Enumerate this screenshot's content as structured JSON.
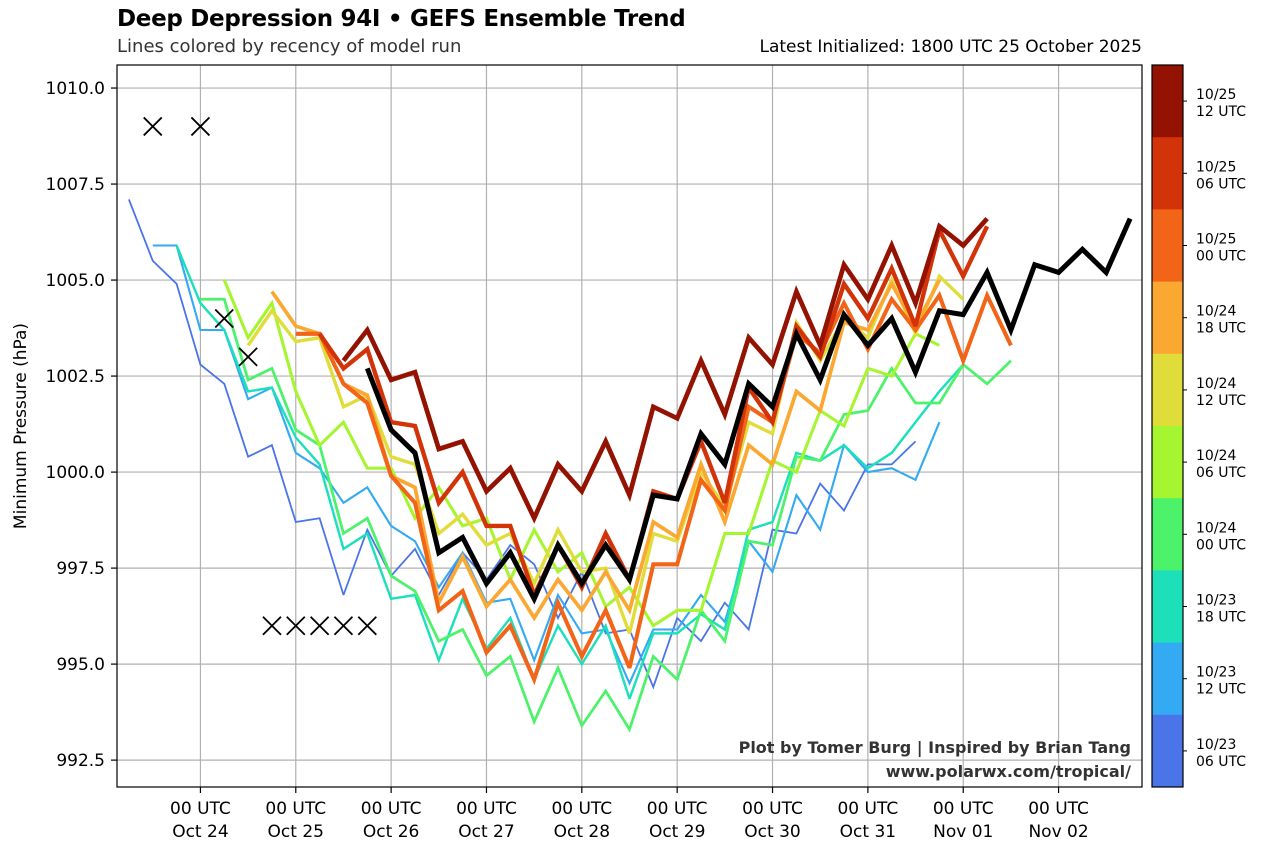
{
  "chart_data": {
    "type": "line",
    "title": "Deep Depression 94I • GEFS Ensemble Trend",
    "subtitle": "Lines colored by recency of model run",
    "init_label": "Latest Initialized: 1800 UTC 25 October 2025",
    "xlabel": "",
    "ylabel": "Minimum Pressure (hPa)",
    "ylim": [
      991.8,
      1010.6
    ],
    "x_unit": "6-hour steps from 00 UTC Oct 24",
    "xlim": [
      -3.5,
      39.5
    ],
    "grid": true,
    "yticks": [
      {
        "value": 1010.0,
        "label": "1010.0"
      },
      {
        "value": 1007.5,
        "label": "1007.5"
      },
      {
        "value": 1005.0,
        "label": "1005.0"
      },
      {
        "value": 1002.5,
        "label": "1002.5"
      },
      {
        "value": 1000.0,
        "label": "1000.0"
      },
      {
        "value": 997.5,
        "label": "997.5"
      },
      {
        "value": 995.0,
        "label": "995.0"
      },
      {
        "value": 992.5,
        "label": "992.5"
      }
    ],
    "xticks": [
      {
        "value": 0,
        "line1": "00 UTC",
        "line2": "Oct 24"
      },
      {
        "value": 4,
        "line1": "00 UTC",
        "line2": "Oct 25"
      },
      {
        "value": 8,
        "line1": "00 UTC",
        "line2": "Oct 26"
      },
      {
        "value": 12,
        "line1": "00 UTC",
        "line2": "Oct 27"
      },
      {
        "value": 16,
        "line1": "00 UTC",
        "line2": "Oct 28"
      },
      {
        "value": 20,
        "line1": "00 UTC",
        "line2": "Oct 29"
      },
      {
        "value": 24,
        "line1": "00 UTC",
        "line2": "Oct 30"
      },
      {
        "value": 28,
        "line1": "00 UTC",
        "line2": "Oct 31"
      },
      {
        "value": 32,
        "line1": "00 UTC",
        "line2": "Nov 01"
      },
      {
        "value": 36,
        "line1": "00 UTC",
        "line2": "Nov 02"
      }
    ],
    "series": [
      {
        "name": "10/23 06 UTC",
        "color": "#4a74e8",
        "start": -3,
        "values": [
          1007.1,
          1005.5,
          1004.9,
          1002.8,
          1002.3,
          1000.4,
          1000.7,
          998.7,
          998.8,
          996.8,
          998.5,
          997.3,
          998.0,
          996.8,
          997.9,
          997.2,
          998.1,
          997.6,
          996.2,
          997.4,
          995.8,
          995.9,
          994.4,
          996.2,
          995.6,
          996.6,
          995.9,
          998.5,
          998.4,
          999.7,
          999.0,
          1000.2,
          1000.2,
          1000.8
        ]
      },
      {
        "name": "10/23 12 UTC",
        "color": "#33aaf2",
        "start": -2,
        "values": [
          1005.9,
          1005.9,
          1003.7,
          1003.7,
          1001.9,
          1002.2,
          1000.5,
          1000.1,
          999.2,
          999.6,
          998.6,
          998.2,
          997.0,
          997.9,
          996.6,
          996.7,
          995.1,
          996.8,
          995.8,
          995.9,
          994.5,
          995.9,
          995.9,
          996.8,
          996.1,
          998.2,
          997.4,
          999.4,
          998.5,
          1000.7,
          1000.0,
          1000.1,
          999.8,
          1001.3
        ]
      },
      {
        "name": "10/23 18 UTC",
        "color": "#1de0bb",
        "start": -1,
        "values": [
          1005.9,
          1004.4,
          1003.7,
          1002.1,
          1002.2,
          1000.9,
          1000.2,
          998.0,
          998.4,
          996.7,
          996.8,
          995.1,
          996.7,
          995.4,
          996.2,
          994.6,
          996.0,
          995.0,
          996.0,
          994.1,
          995.8,
          995.8,
          996.3,
          995.9,
          998.5,
          998.7,
          1000.5,
          1000.3,
          1000.7,
          1000.1,
          1000.5,
          1001.3,
          1002.1,
          1002.8
        ]
      },
      {
        "name": "10/24 00 UTC",
        "color": "#4cf26a",
        "start": 0,
        "values": [
          1004.5,
          1004.5,
          1002.4,
          1002.7,
          1001.1,
          1000.7,
          998.4,
          998.8,
          997.3,
          996.9,
          995.6,
          995.9,
          994.7,
          995.2,
          993.5,
          994.9,
          993.4,
          994.3,
          993.3,
          995.2,
          994.6,
          996.4,
          995.6,
          998.2,
          998.1,
          1000.4,
          1000.3,
          1001.5,
          1001.6,
          1002.7,
          1001.8,
          1001.8,
          1002.8,
          1002.3,
          1002.9
        ]
      },
      {
        "name": "10/24 06 UTC",
        "color": "#a6f531",
        "start": 1,
        "values": [
          1005.0,
          1003.5,
          1004.4,
          1002.1,
          1000.7,
          1001.3,
          1000.1,
          1000.1,
          998.8,
          999.6,
          998.6,
          998.8,
          997.2,
          998.5,
          997.4,
          997.9,
          996.5,
          997.0,
          996.0,
          996.4,
          996.4,
          998.4,
          998.4,
          1000.3,
          1000.0,
          1001.6,
          1001.2,
          1002.7,
          1002.5,
          1003.6,
          1003.3
        ]
      },
      {
        "name": "10/24 12 UTC",
        "color": "#e0dd3a",
        "start": 2,
        "values": [
          1003.3,
          1004.2,
          1003.4,
          1003.5,
          1001.7,
          1002.0,
          1000.4,
          1000.2,
          998.4,
          998.9,
          998.1,
          998.4,
          997.1,
          998.5,
          997.4,
          997.5,
          995.8,
          998.4,
          998.2,
          1000.0,
          999.1,
          1001.3,
          1001.0,
          1003.9,
          1002.9,
          1004.0,
          1003.5,
          1005.0,
          1003.6,
          1005.1,
          1004.5
        ]
      },
      {
        "name": "10/24 18 UTC",
        "color": "#fba832",
        "start": 3,
        "values": [
          1004.7,
          1003.8,
          1003.6,
          1002.3,
          1002.0,
          999.9,
          999.6,
          996.6,
          997.8,
          996.5,
          997.2,
          996.2,
          997.2,
          996.4,
          997.4,
          996.4,
          998.7,
          998.3,
          1000.2,
          998.7,
          1000.7,
          1000.2,
          1002.1,
          1001.6,
          1003.9,
          1003.7,
          1004.9,
          1003.8,
          1005.0
        ]
      },
      {
        "name": "10/25 00 UTC",
        "color": "#f26418",
        "start": 4,
        "values": [
          1003.6,
          1003.6,
          1002.3,
          1001.8,
          999.9,
          999.2,
          996.4,
          996.9,
          995.3,
          996.0,
          994.6,
          996.6,
          995.2,
          996.4,
          994.9,
          997.6,
          997.6,
          999.8,
          999.0,
          1001.7,
          1001.3,
          1003.6,
          1003.1,
          1004.4,
          1003.2,
          1004.5,
          1003.7,
          1004.6,
          1002.9,
          1004.6,
          1003.3
        ]
      },
      {
        "name": "10/25 06 UTC",
        "color": "#d33308",
        "start": 5,
        "values": [
          1003.6,
          1002.7,
          1003.2,
          1001.3,
          1001.2,
          999.2,
          1000.0,
          998.6,
          998.6,
          996.8,
          998.1,
          997.0,
          998.4,
          997.2,
          999.5,
          999.3,
          1000.8,
          999.2,
          1002.2,
          1001.3,
          1003.8,
          1003.0,
          1004.9,
          1004.0,
          1005.3,
          1003.8,
          1006.3,
          1005.1,
          1006.4
        ]
      },
      {
        "name": "10/25 12 UTC",
        "color": "#941201",
        "start": 6,
        "values": [
          1002.9,
          1003.7,
          1002.4,
          1002.6,
          1000.6,
          1000.8,
          999.5,
          1000.1,
          998.8,
          1000.2,
          999.5,
          1000.8,
          999.4,
          1001.7,
          1001.4,
          1002.9,
          1001.5,
          1003.5,
          1002.8,
          1004.7,
          1003.3,
          1005.4,
          1004.5,
          1005.9,
          1004.4,
          1006.4,
          1005.9,
          1006.6
        ]
      },
      {
        "name": "10/25 18 UTC (latest)",
        "color": "#000000",
        "start": 7,
        "values": [
          1002.7,
          1001.1,
          1000.5,
          997.9,
          998.3,
          997.1,
          997.9,
          996.7,
          998.1,
          997.1,
          998.1,
          997.2,
          999.4,
          999.3,
          1001.0,
          1000.2,
          1002.3,
          1001.7,
          1003.6,
          1002.4,
          1004.1,
          1003.3,
          1004.0,
          1002.6,
          1004.2,
          1004.1,
          1005.2,
          1003.7,
          1005.4,
          1005.2,
          1005.8,
          1005.2,
          1006.6
        ]
      }
    ],
    "observed_markers": {
      "name": "Observed (X)",
      "points": [
        {
          "t": -2,
          "value": 1009.0
        },
        {
          "t": 0,
          "value": 1009.0
        },
        {
          "t": 1,
          "value": 1004.0
        },
        {
          "t": 2,
          "value": 1003.0
        },
        {
          "t": 3,
          "value": 996.0
        },
        {
          "t": 4,
          "value": 996.0
        },
        {
          "t": 5,
          "value": 996.0
        },
        {
          "t": 6,
          "value": 996.0
        },
        {
          "t": 7,
          "value": 996.0
        }
      ]
    },
    "colorbar": {
      "placement": "right",
      "entries": [
        {
          "line1": "10/25",
          "line2": "12 UTC",
          "color": "#941201"
        },
        {
          "line1": "10/25",
          "line2": "06 UTC",
          "color": "#d33308"
        },
        {
          "line1": "10/25",
          "line2": "00 UTC",
          "color": "#f26418"
        },
        {
          "line1": "10/24",
          "line2": "18 UTC",
          "color": "#fba832"
        },
        {
          "line1": "10/24",
          "line2": "12 UTC",
          "color": "#e0dd3a"
        },
        {
          "line1": "10/24",
          "line2": "06 UTC",
          "color": "#a6f531"
        },
        {
          "line1": "10/24",
          "line2": "00 UTC",
          "color": "#4cf26a"
        },
        {
          "line1": "10/23",
          "line2": "18 UTC",
          "color": "#1de0bb"
        },
        {
          "line1": "10/23",
          "line2": "12 UTC",
          "color": "#33aaf2"
        },
        {
          "line1": "10/23",
          "line2": "06 UTC",
          "color": "#4a74e8"
        }
      ]
    },
    "credit_line1": "Plot by Tomer Burg | Inspired by Brian Tang",
    "credit_line2": "www.polarwx.com/tropical/"
  }
}
